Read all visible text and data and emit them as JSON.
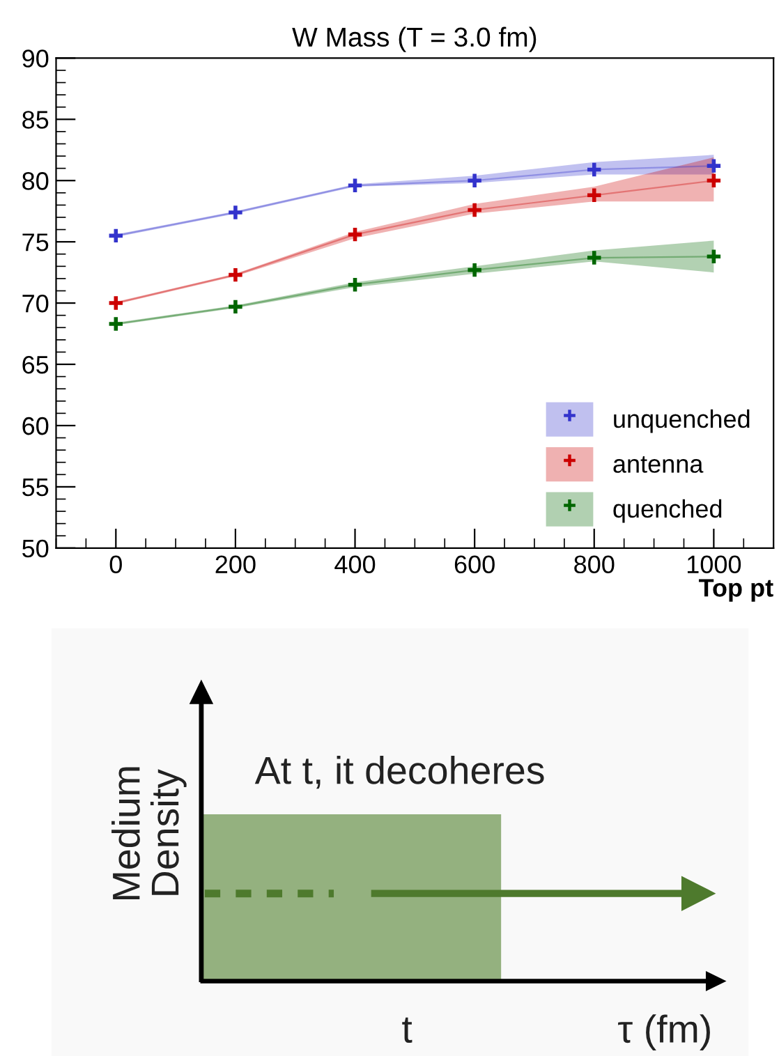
{
  "chart_data": [
    {
      "type": "line",
      "title": "W Mass (T = 3.0 fm)",
      "xlabel": "Top pt",
      "x": [
        0,
        200,
        400,
        600,
        800,
        1000
      ],
      "series": [
        {
          "name": "unquenched",
          "color": "#3333cc",
          "values": [
            75.5,
            77.4,
            79.6,
            80.0,
            80.9,
            81.2
          ],
          "lower": [
            75.4,
            77.3,
            79.5,
            79.8,
            80.5,
            80.5
          ],
          "upper": [
            75.6,
            77.5,
            79.7,
            80.4,
            81.5,
            82.1
          ]
        },
        {
          "name": "antenna",
          "color": "#cc0000",
          "values": [
            70.0,
            72.3,
            75.6,
            77.6,
            78.8,
            80.0
          ],
          "lower": [
            69.9,
            72.2,
            75.3,
            77.3,
            78.3,
            78.3
          ],
          "upper": [
            70.1,
            72.4,
            75.8,
            78.1,
            79.5,
            81.9
          ]
        },
        {
          "name": "quenched",
          "color": "#006600",
          "values": [
            68.3,
            69.7,
            71.5,
            72.7,
            73.7,
            73.8
          ],
          "lower": [
            68.2,
            69.6,
            71.3,
            72.4,
            73.4,
            72.5
          ],
          "upper": [
            68.4,
            69.8,
            71.7,
            73.0,
            74.3,
            75.1
          ]
        }
      ],
      "xlim": [
        -100,
        1100
      ],
      "ylim": [
        50,
        90
      ],
      "xticks": [
        0,
        200,
        400,
        600,
        800,
        1000
      ],
      "yticks": [
        50,
        55,
        60,
        65,
        70,
        75,
        80,
        85,
        90
      ],
      "marker": "cross",
      "grid": false,
      "legend": "bottom right"
    },
    {
      "type": "other",
      "xlabel": "τ (fm)",
      "ylabel": "Medium\nDensity",
      "annotations": [
        "At t, it decoheres",
        "t"
      ]
    }
  ]
}
